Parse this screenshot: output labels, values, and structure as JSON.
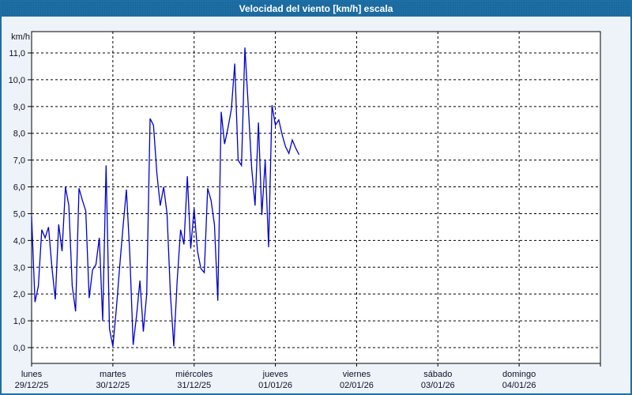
{
  "window": {
    "title": "Velocidad del viento [km/h] escala"
  },
  "colors": {
    "accent": "#1C6EA4",
    "titlebar_bg": "#1D6FA6",
    "titlebar_text": "#FFFFFF",
    "page_bg": "#EDF3F9",
    "plot_bg": "#FFFFFF",
    "grid": "#000000",
    "line": "#0000CC",
    "label_text": "#10102A"
  },
  "chart_data": {
    "type": "line",
    "title": "Velocidad del viento [km/h] escala",
    "ylabel": "km/h",
    "xlabel": "",
    "ylim": [
      0,
      11.8
    ],
    "grid": "dashed",
    "legend": "none",
    "y_ticks": [
      0,
      1,
      2,
      3,
      4,
      5,
      6,
      7,
      8,
      9,
      10,
      11
    ],
    "y_tick_labels": [
      "0,0",
      "1,0",
      "2,0",
      "3,0",
      "4,0",
      "5,0",
      "6,0",
      "7,0",
      "8,0",
      "9,0",
      "10,0",
      "11,0"
    ],
    "x_axis": {
      "days": [
        {
          "label": "lunes",
          "date": "29/12/25"
        },
        {
          "label": "martes",
          "date": "30/12/25"
        },
        {
          "label": "miércoles",
          "date": "31/12/25"
        },
        {
          "label": "jueves",
          "date": "01/01/26"
        },
        {
          "label": "viernes",
          "date": "02/01/26"
        },
        {
          "label": "sábado",
          "date": "03/01/26"
        },
        {
          "label": "domingo",
          "date": "04/01/26"
        }
      ]
    },
    "sample_interval_hours": 1,
    "series": [
      {
        "name": "Velocidad del viento",
        "color": "#0000CC",
        "start": "lunes 29/12/25 00:00",
        "values": [
          4.9,
          1.7,
          2.3,
          4.4,
          4.1,
          4.5,
          3.0,
          1.8,
          4.6,
          3.6,
          6.0,
          5.3,
          2.3,
          1.35,
          5.95,
          5.5,
          5.1,
          1.85,
          2.9,
          3.1,
          4.1,
          1.0,
          6.8,
          0.7,
          0.05,
          1.4,
          3.0,
          4.5,
          5.9,
          3.5,
          0.1,
          1.2,
          2.5,
          0.6,
          2.0,
          8.55,
          8.3,
          6.5,
          5.3,
          6.0,
          5.0,
          2.0,
          0.05,
          2.5,
          4.4,
          3.85,
          6.4,
          3.7,
          5.2,
          3.6,
          2.95,
          2.8,
          5.95,
          5.5,
          4.6,
          1.75,
          8.8,
          7.6,
          8.2,
          8.9,
          10.6,
          7.0,
          6.8,
          11.2,
          9.0,
          6.7,
          5.3,
          8.4,
          4.95,
          7.0,
          3.75,
          9.05,
          8.3,
          8.5,
          7.95,
          7.5,
          7.25,
          7.75,
          7.45,
          7.2
        ]
      }
    ]
  }
}
